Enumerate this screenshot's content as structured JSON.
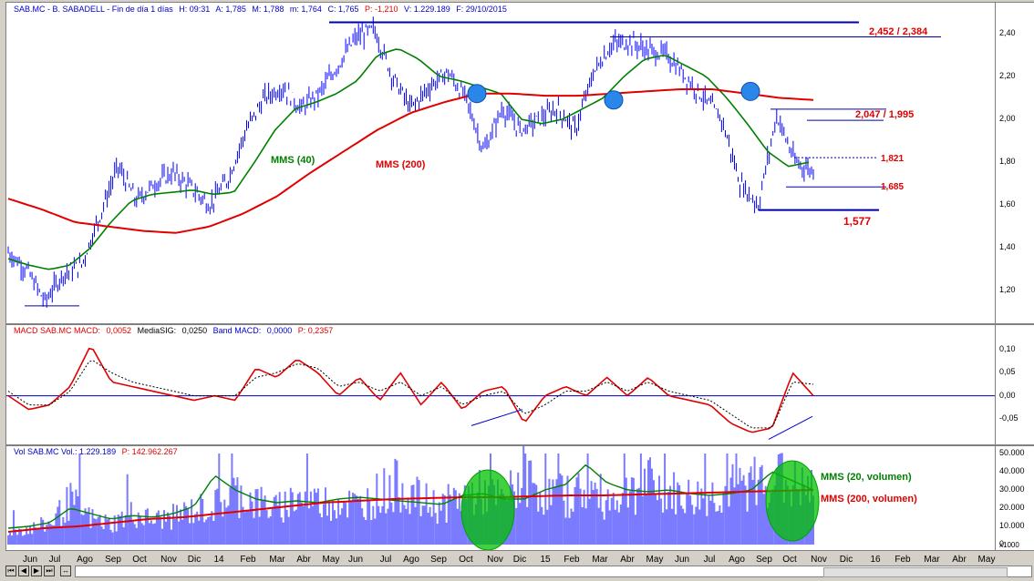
{
  "header": {
    "ticker": "SAB.MC - B. SABADELL - Fin de día 1 días",
    "h": "H: 09:31",
    "a": "A: 1,785",
    "m": "M: 1,788",
    "mn": "m: 1,764",
    "c": "C: 1,765",
    "p": "P: -1,210",
    "v": "V: 1.229.189",
    "f": "F: 29/10/2015"
  },
  "macd_header": {
    "title": "MACD  SAB.MC  MACD:",
    "macd_val": "0,0052",
    "sig_label": "MediaSIG:",
    "sig_val": "0,0250",
    "band_label": "Band  MACD:",
    "band_val": "0,0000",
    "p": "P: 0,2357"
  },
  "vol_header": {
    "title": "Vol  SAB.MC  Vol.: 1.229.189",
    "p": "P: 142.962.267"
  },
  "annotations": {
    "mms40": "MMS (40)",
    "mms200": "MMS (200)",
    "r1": "2,452 / 2,384",
    "r2": "2,047 / 1,995",
    "r3": "1,821",
    "r4": "1,685",
    "r5": "1,577",
    "vol20": "MMS (20, volumen)",
    "vol200": "MMS (200, volumen)"
  },
  "colors": {
    "price": "#0000ff",
    "mms40": "#008000",
    "mms200": "#e00000",
    "macd": "#e00000",
    "volume": "#7b7bff",
    "circle": "#2a86e8",
    "ellipse": "#00c000"
  },
  "x_labels": [
    "Jun",
    "Jul",
    "Ago",
    "Sep",
    "Oct",
    "Nov",
    "Dic",
    "14",
    "Feb",
    "Mar",
    "Abr",
    "May",
    "Jun",
    "Jul",
    "Ago",
    "Sep",
    "Oct",
    "Nov",
    "Dic",
    "15",
    "Feb",
    "Mar",
    "Abr",
    "May",
    "Jun",
    "Jul",
    "Ago",
    "Sep",
    "Oct",
    "Nov",
    "Dic",
    "16",
    "Feb",
    "Mar",
    "Abr",
    "May"
  ],
  "chart_data": [
    {
      "type": "line",
      "title": "SAB.MC - B. SABADELL",
      "ylim": [
        1.1,
        2.45
      ],
      "yticks": [
        "2,40",
        "2,20",
        "2,00",
        "1,80",
        "1,60",
        "1,40",
        "1,20"
      ],
      "series": [
        {
          "name": "SAB.MC",
          "values": [
            1.38,
            1.3,
            1.15,
            1.28,
            1.32,
            1.55,
            1.78,
            1.62,
            1.7,
            1.75,
            1.68,
            1.6,
            1.72,
            1.95,
            2.1,
            2.15,
            2.05,
            2.12,
            2.25,
            2.38,
            2.42,
            2.2,
            2.05,
            2.15,
            2.22,
            2.1,
            1.85,
            2.05,
            1.95,
            2.0,
            2.05,
            1.95,
            2.22,
            2.35,
            2.36,
            2.32,
            2.3,
            2.2,
            2.1,
            2.0,
            1.7,
            1.6,
            2.02,
            1.8,
            1.76
          ]
        },
        {
          "name": "MMS (40)",
          "values": [
            1.35,
            1.32,
            1.3,
            1.32,
            1.4,
            1.52,
            1.62,
            1.65,
            1.66,
            1.67,
            1.65,
            1.66,
            1.8,
            1.95,
            2.05,
            2.08,
            2.12,
            2.18,
            2.3,
            2.33,
            2.28,
            2.2,
            2.18,
            2.15,
            2.12,
            2.0,
            1.98,
            2.0,
            2.05,
            2.1,
            2.2,
            2.28,
            2.3,
            2.25,
            2.2,
            2.1,
            1.98,
            1.85,
            1.78,
            1.8
          ]
        },
        {
          "name": "MMS (200)",
          "values": [
            1.63,
            1.58,
            1.52,
            1.5,
            1.48,
            1.47,
            1.5,
            1.56,
            1.64,
            1.75,
            1.85,
            1.95,
            2.03,
            2.08,
            2.12,
            2.12,
            2.11,
            2.11,
            2.12,
            2.13,
            2.14,
            2.14,
            2.12,
            2.1,
            2.09
          ]
        }
      ]
    },
    {
      "type": "line",
      "title": "MACD",
      "ylim": [
        -0.1,
        0.13
      ],
      "yticks": [
        "0,10",
        "0,05",
        "0,00",
        "-0,05"
      ],
      "series": [
        {
          "name": "MACD",
          "values": [
            0.0,
            -0.03,
            -0.02,
            0.02,
            0.11,
            0.03,
            0.02,
            0.01,
            0.0,
            -0.01,
            0.0,
            -0.01,
            0.06,
            0.04,
            0.08,
            0.05,
            0.0,
            0.04,
            -0.01,
            0.05,
            -0.02,
            0.03,
            -0.03,
            0.01,
            0.02,
            -0.06,
            0.0,
            0.02,
            0.0,
            0.04,
            0.0,
            0.04,
            0.0,
            -0.01,
            -0.02,
            -0.06,
            -0.08,
            -0.07,
            0.05,
            0.0
          ]
        },
        {
          "name": "MediaSIG",
          "values": [
            0.01,
            -0.02,
            -0.02,
            0.01,
            0.08,
            0.05,
            0.03,
            0.02,
            0.01,
            0.0,
            0.0,
            0.0,
            0.04,
            0.05,
            0.07,
            0.06,
            0.02,
            0.03,
            0.01,
            0.03,
            0.0,
            0.02,
            -0.02,
            0.0,
            0.01,
            -0.04,
            -0.02,
            0.01,
            0.01,
            0.03,
            0.01,
            0.03,
            0.01,
            0.0,
            -0.01,
            -0.04,
            -0.07,
            -0.07,
            0.03,
            0.025
          ]
        }
      ]
    },
    {
      "type": "bar",
      "title": "Vol",
      "ylim": [
        0,
        50000
      ],
      "yticks": [
        "50.000",
        "40.000",
        "30.000",
        "20.000",
        "10.000",
        "0"
      ],
      "unit": "x1000",
      "series": [
        {
          "name": "Vol",
          "values": [
            8000,
            9000,
            12000,
            25000,
            15000,
            12000,
            18000,
            14000,
            16000,
            20000,
            22000,
            30000,
            25000,
            20000,
            28000,
            24000,
            26000,
            22000,
            30000,
            35000,
            25000,
            22000,
            28000,
            30000,
            25000,
            40000,
            30000,
            28000,
            32000,
            26000,
            30000,
            35000,
            30000,
            27000,
            28000,
            32000,
            35000,
            40000,
            34000,
            30000
          ]
        },
        {
          "name": "MMS (20, volumen)",
          "values": [
            9000,
            10000,
            12000,
            20000,
            17000,
            14000,
            16000,
            15000,
            17000,
            21000,
            38000,
            30000,
            25000,
            23000,
            24000,
            23000,
            25000,
            26000,
            25000,
            24000,
            23000,
            22000,
            27000,
            28000,
            25000,
            25000,
            30000,
            33000,
            44000,
            34000,
            30000,
            29000,
            30000,
            28000,
            27000,
            28000,
            30000,
            40000,
            35000,
            30000
          ]
        },
        {
          "name": "MMS (200, volumen)",
          "values": [
            7000,
            9000,
            10000,
            12000,
            14000,
            15000,
            17000,
            19000,
            21000,
            23000,
            24000,
            25000,
            25500,
            26000,
            26000,
            26500,
            27000,
            27000,
            27500,
            28000,
            28500,
            29000,
            29500,
            30000
          ]
        }
      ]
    }
  ]
}
